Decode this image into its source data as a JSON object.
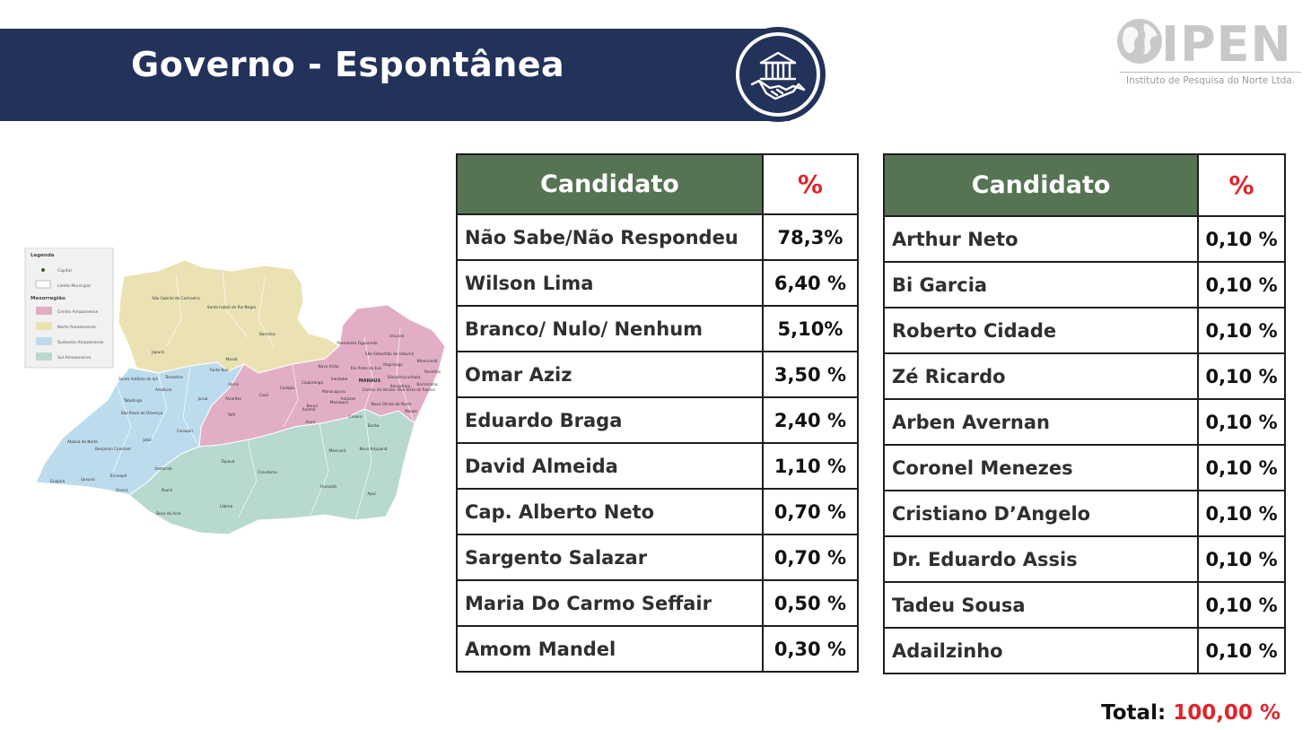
{
  "header": {
    "title": "Governo - Espontânea"
  },
  "logo": {
    "name": "IPEN",
    "subtitle": "Instituto de Pesquisa do Norte Ltda."
  },
  "map": {
    "legend_title": "Legenda",
    "legend_items": [
      "Capital",
      "Limite Municipal"
    ],
    "meso_title": "Mesorregião",
    "meso_items": [
      {
        "label": "Centro Amazonense",
        "color": "#e2aec6"
      },
      {
        "label": "Norte Amazonense",
        "color": "#ebe2b4"
      },
      {
        "label": "Sudoeste Amazonense",
        "color": "#bcdcee"
      },
      {
        "label": "Sul Amazonense",
        "color": "#b7d9d0"
      }
    ],
    "places": [
      "São Gabriel da Cachoeira",
      "Santa Isabel do Rio Negro",
      "Barcelos",
      "Japurá",
      "Maraã",
      "Fonte Boa",
      "Uarini",
      "Tonantins",
      "Santo Antônio do Içá",
      "Amaturá",
      "Tabatinga",
      "São Paulo de Olivença",
      "Jutaí",
      "Juruá",
      "Carauari",
      "Tefé",
      "Alvarães",
      "Coari",
      "Codajás",
      "Anori",
      "Manacapuru",
      "Iranduba",
      "MANAUS",
      "Urucará",
      "Presidente Figueiredo",
      "Novo Airão",
      "Autazes",
      "Borba",
      "Nova Olinda do Norte",
      "Maués",
      "Parintins",
      "Barreirinha",
      "Boa Vista do Ramos",
      "Urucurituba",
      "Silves",
      "Itapiranga",
      "São Sebastião do Uatumã",
      "Manicoré",
      "Nova Aripuanã",
      "Apuí",
      "Humaitá",
      "Canutama",
      "Lábrea",
      "Tapauá",
      "Pauini",
      "Boca do Acre",
      "Envira",
      "Eirunepé",
      "Ipixuna",
      "Guajará",
      "Atalaia do Norte",
      "Benjamin Constant",
      "Itamarati",
      "Beruri",
      "Careiro",
      "Careiro da Várzea",
      "Caapiranga",
      "Anamã",
      "Manaquiri",
      "Rio Preto da Eva",
      "Itacoatiara",
      "Nhamundá",
      "Urucará",
      "Boa Vista",
      "Silves"
    ]
  },
  "table_left": {
    "header_candidate": "Candidato",
    "header_percent": "%",
    "rows": [
      {
        "name": "Não Sabe/Não Respondeu",
        "value": "78,3%"
      },
      {
        "name": "Wilson Lima",
        "value": "6,40 %"
      },
      {
        "name": "Branco/ Nulo/ Nenhum",
        "value": "5,10%"
      },
      {
        "name": "Omar Aziz",
        "value": "3,50 %"
      },
      {
        "name": "Eduardo Braga",
        "value": "2,40 %"
      },
      {
        "name": "David Almeida",
        "value": "1,10 %"
      },
      {
        "name": "Cap. Alberto Neto",
        "value": "0,70 %"
      },
      {
        "name": "Sargento Salazar",
        "value": "0,70 %"
      },
      {
        "name": "Maria Do Carmo Seffair",
        "value": "0,50 %"
      },
      {
        "name": "Amom Mandel",
        "value": "0,30 %"
      }
    ]
  },
  "table_right": {
    "header_candidate": "Candidato",
    "header_percent": "%",
    "rows": [
      {
        "name": "Arthur Neto",
        "value": "0,10 %"
      },
      {
        "name": "Bi Garcia",
        "value": "0,10 %"
      },
      {
        "name": "Roberto Cidade",
        "value": "0,10 %"
      },
      {
        "name": "Zé Ricardo",
        "value": "0,10 %"
      },
      {
        "name": "Arben Avernan",
        "value": "0,10 %"
      },
      {
        "name": "Coronel Menezes",
        "value": "0,10 %"
      },
      {
        "name": "Cristiano D’Angelo",
        "value": "0,10 %"
      },
      {
        "name": "Dr. Eduardo Assis",
        "value": "0,10 %"
      },
      {
        "name": "Tadeu Sousa",
        "value": "0,10 %"
      },
      {
        "name": "Adailzinho",
        "value": "0,10 %"
      }
    ]
  },
  "total": {
    "label": "Total:",
    "value": "100,00 %"
  },
  "colors": {
    "banner": "#22325a",
    "table_header": "#567454",
    "accent_red": "#e0242b"
  }
}
